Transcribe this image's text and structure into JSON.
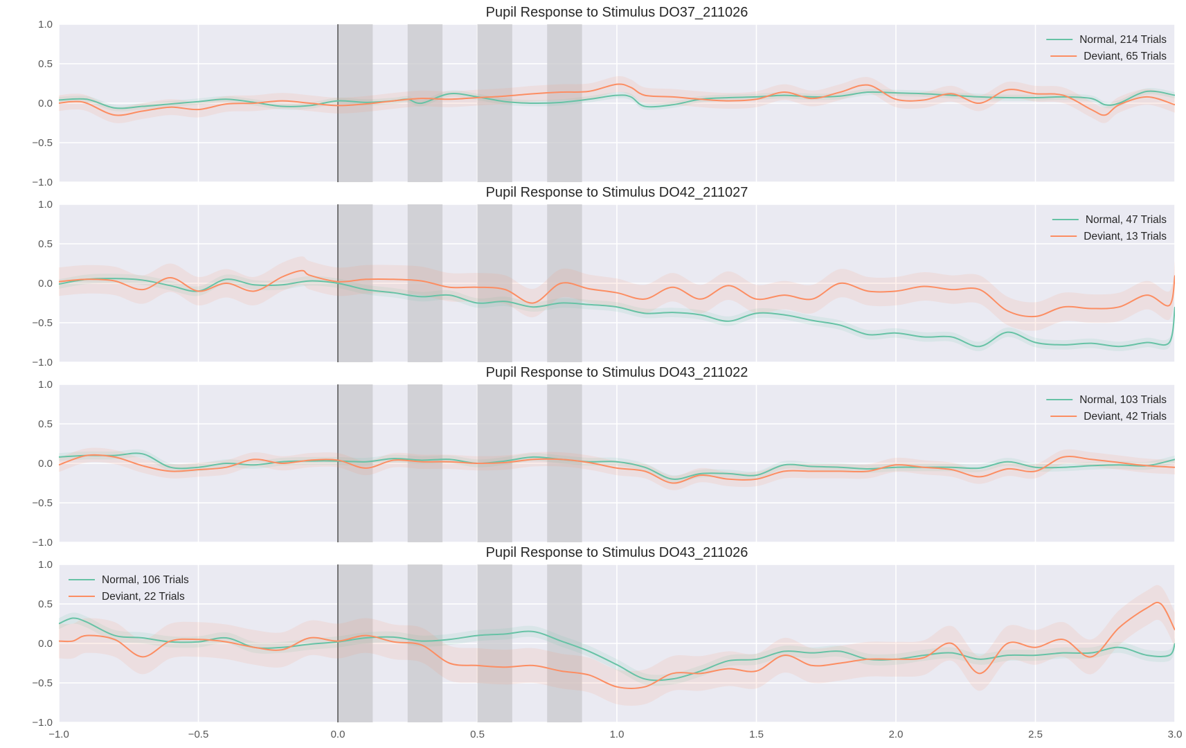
{
  "chart_data": {
    "type": "line",
    "xlim": [
      -1.0,
      3.0
    ],
    "ylim": [
      -1.0,
      1.0
    ],
    "xticks": [
      "−1.0",
      "−0.5",
      "0.0",
      "0.5",
      "1.0",
      "1.5",
      "2.0",
      "2.5",
      "3.0"
    ],
    "xtick_values": [
      -1.0,
      -0.5,
      0.0,
      0.5,
      1.0,
      1.5,
      2.0,
      2.5,
      3.0
    ],
    "yticks": [
      "1.0",
      "0.5",
      "0.0",
      "−0.5",
      "−1.0"
    ],
    "ytick_values": [
      1.0,
      0.5,
      0.0,
      -0.5,
      -1.0
    ],
    "stimulus_line_x": 0.0,
    "stimulus_bands": [
      [
        0.0,
        0.125
      ],
      [
        0.25,
        0.375
      ],
      [
        0.5,
        0.625
      ],
      [
        0.75,
        0.875
      ]
    ],
    "colors": {
      "normal": "#66c2a5",
      "deviant": "#fc8d62",
      "band": "#c8c8cc",
      "axes_bg": "#eaeaf2",
      "grid": "#ffffff"
    },
    "grid": true,
    "panels": [
      {
        "title": "Pupil Response to Stimulus DO37_211026",
        "legend_position": "top-right",
        "series": [
          {
            "name": "Normal, 214 Trials",
            "key": "normal",
            "band": 0.04,
            "x": [
              -1.0,
              -0.9,
              -0.8,
              -0.7,
              -0.6,
              -0.5,
              -0.4,
              -0.3,
              -0.2,
              -0.1,
              0.0,
              0.1,
              0.2,
              0.25,
              0.3,
              0.4,
              0.5,
              0.6,
              0.7,
              0.8,
              0.9,
              1.0,
              1.05,
              1.1,
              1.2,
              1.3,
              1.4,
              1.5,
              1.6,
              1.7,
              1.8,
              1.9,
              2.0,
              2.1,
              2.2,
              2.3,
              2.4,
              2.5,
              2.6,
              2.7,
              2.75,
              2.8,
              2.9,
              3.0
            ],
            "y": [
              0.04,
              0.05,
              -0.06,
              -0.04,
              -0.01,
              0.02,
              0.05,
              0.01,
              -0.04,
              -0.03,
              0.03,
              0.01,
              0.03,
              0.05,
              0.0,
              0.12,
              0.08,
              0.02,
              0.0,
              0.01,
              0.05,
              0.1,
              0.08,
              -0.04,
              -0.02,
              0.05,
              0.07,
              0.08,
              0.1,
              0.08,
              0.09,
              0.14,
              0.13,
              0.12,
              0.1,
              0.08,
              0.07,
              0.07,
              0.08,
              0.06,
              -0.02,
              0.0,
              0.15,
              0.1
            ]
          },
          {
            "name": "Deviant, 65 Trials",
            "key": "deviant",
            "band": 0.1,
            "x": [
              -1.0,
              -0.95,
              -0.9,
              -0.8,
              -0.7,
              -0.6,
              -0.5,
              -0.4,
              -0.3,
              -0.2,
              -0.1,
              0.0,
              0.1,
              0.2,
              0.3,
              0.4,
              0.5,
              0.6,
              0.7,
              0.8,
              0.9,
              1.0,
              1.05,
              1.1,
              1.2,
              1.3,
              1.4,
              1.5,
              1.6,
              1.7,
              1.8,
              1.9,
              2.0,
              2.1,
              2.2,
              2.3,
              2.4,
              2.5,
              2.6,
              2.7,
              2.75,
              2.8,
              2.9,
              3.0
            ],
            "y": [
              0.0,
              0.02,
              0.0,
              -0.15,
              -0.1,
              -0.05,
              -0.08,
              -0.01,
              0.0,
              0.03,
              0.0,
              -0.03,
              -0.01,
              0.03,
              0.06,
              0.05,
              0.07,
              0.09,
              0.12,
              0.14,
              0.15,
              0.24,
              0.2,
              0.1,
              0.08,
              0.05,
              0.03,
              0.05,
              0.14,
              0.06,
              0.14,
              0.23,
              0.05,
              0.04,
              0.12,
              0.0,
              0.17,
              0.12,
              0.1,
              -0.08,
              -0.15,
              -0.02,
              0.08,
              -0.02
            ]
          }
        ]
      },
      {
        "title": "Pupil Response to Stimulus DO42_211027",
        "legend_position": "top-right",
        "series": [
          {
            "name": "Normal, 47 Trials",
            "key": "normal",
            "band": 0.06,
            "x": [
              -1.0,
              -0.9,
              -0.8,
              -0.7,
              -0.6,
              -0.5,
              -0.4,
              -0.3,
              -0.2,
              -0.1,
              0.0,
              0.1,
              0.2,
              0.3,
              0.4,
              0.5,
              0.6,
              0.7,
              0.8,
              0.9,
              1.0,
              1.1,
              1.2,
              1.3,
              1.4,
              1.5,
              1.6,
              1.7,
              1.8,
              1.9,
              2.0,
              2.1,
              2.2,
              2.3,
              2.4,
              2.5,
              2.6,
              2.7,
              2.8,
              2.9,
              2.98,
              3.0
            ],
            "y": [
              -0.01,
              0.05,
              0.06,
              0.04,
              -0.03,
              -0.1,
              0.05,
              -0.02,
              -0.02,
              0.03,
              0.0,
              -0.08,
              -0.12,
              -0.17,
              -0.15,
              -0.25,
              -0.23,
              -0.3,
              -0.25,
              -0.27,
              -0.3,
              -0.38,
              -0.37,
              -0.4,
              -0.48,
              -0.38,
              -0.4,
              -0.47,
              -0.53,
              -0.65,
              -0.63,
              -0.68,
              -0.68,
              -0.8,
              -0.62,
              -0.75,
              -0.78,
              -0.76,
              -0.8,
              -0.75,
              -0.75,
              -0.3
            ]
          },
          {
            "name": "Deviant, 13 Trials",
            "key": "deviant",
            "band": 0.18,
            "x": [
              -1.0,
              -0.9,
              -0.8,
              -0.7,
              -0.6,
              -0.5,
              -0.4,
              -0.3,
              -0.2,
              -0.13,
              -0.1,
              0.0,
              0.1,
              0.2,
              0.3,
              0.4,
              0.5,
              0.6,
              0.7,
              0.8,
              0.9,
              1.0,
              1.1,
              1.2,
              1.3,
              1.4,
              1.5,
              1.6,
              1.7,
              1.8,
              1.9,
              2.0,
              2.1,
              2.2,
              2.3,
              2.4,
              2.5,
              2.6,
              2.7,
              2.8,
              2.9,
              2.98,
              3.0
            ],
            "y": [
              0.02,
              0.05,
              0.03,
              -0.08,
              0.07,
              -0.1,
              0.0,
              -0.1,
              0.08,
              0.16,
              0.1,
              0.02,
              0.05,
              0.05,
              0.03,
              -0.05,
              -0.05,
              -0.08,
              -0.25,
              0.0,
              -0.07,
              -0.12,
              -0.2,
              -0.05,
              -0.2,
              -0.03,
              -0.2,
              -0.15,
              -0.2,
              0.0,
              -0.1,
              -0.1,
              -0.04,
              -0.08,
              -0.08,
              -0.35,
              -0.42,
              -0.3,
              -0.32,
              -0.3,
              -0.15,
              -0.28,
              0.1
            ]
          }
        ]
      },
      {
        "title": "Pupil Response to Stimulus DO43_211022",
        "legend_position": "top-right",
        "series": [
          {
            "name": "Normal, 103 Trials",
            "key": "normal",
            "band": 0.05,
            "x": [
              -1.0,
              -0.9,
              -0.8,
              -0.7,
              -0.6,
              -0.5,
              -0.4,
              -0.3,
              -0.2,
              -0.1,
              0.0,
              0.1,
              0.2,
              0.3,
              0.4,
              0.5,
              0.6,
              0.7,
              0.8,
              0.9,
              1.0,
              1.1,
              1.2,
              1.3,
              1.4,
              1.5,
              1.6,
              1.7,
              1.8,
              1.9,
              2.0,
              2.1,
              2.2,
              2.3,
              2.4,
              2.5,
              2.6,
              2.7,
              2.8,
              2.9,
              3.0
            ],
            "y": [
              0.08,
              0.1,
              0.1,
              0.12,
              -0.05,
              -0.05,
              0.0,
              -0.02,
              0.02,
              0.03,
              0.03,
              0.02,
              0.06,
              0.04,
              0.05,
              0.0,
              0.03,
              0.08,
              0.05,
              0.02,
              0.02,
              -0.05,
              -0.2,
              -0.13,
              -0.13,
              -0.15,
              -0.02,
              -0.04,
              -0.05,
              -0.07,
              -0.05,
              -0.05,
              -0.05,
              -0.06,
              0.02,
              -0.05,
              -0.05,
              -0.03,
              -0.02,
              -0.03,
              0.05
            ]
          },
          {
            "name": "Deviant, 42 Trials",
            "key": "deviant",
            "band": 0.09,
            "x": [
              -1.0,
              -0.9,
              -0.8,
              -0.7,
              -0.6,
              -0.5,
              -0.4,
              -0.3,
              -0.2,
              -0.1,
              0.0,
              0.1,
              0.2,
              0.3,
              0.4,
              0.5,
              0.6,
              0.7,
              0.8,
              0.9,
              1.0,
              1.1,
              1.2,
              1.3,
              1.4,
              1.5,
              1.6,
              1.7,
              1.8,
              1.9,
              2.0,
              2.1,
              2.2,
              2.3,
              2.4,
              2.5,
              2.6,
              2.7,
              2.8,
              2.9,
              3.0
            ],
            "y": [
              -0.02,
              0.1,
              0.08,
              -0.03,
              -0.1,
              -0.08,
              -0.05,
              0.05,
              0.0,
              0.04,
              0.04,
              -0.06,
              0.04,
              0.02,
              0.02,
              0.0,
              0.01,
              0.05,
              0.05,
              0.01,
              -0.06,
              -0.1,
              -0.25,
              -0.15,
              -0.2,
              -0.2,
              -0.1,
              -0.1,
              -0.1,
              -0.1,
              -0.02,
              -0.05,
              -0.08,
              -0.17,
              -0.07,
              -0.1,
              0.08,
              0.05,
              0.01,
              -0.03,
              -0.05
            ]
          }
        ]
      },
      {
        "title": "Pupil Response to Stimulus DO43_211026",
        "legend_position": "top-left",
        "series": [
          {
            "name": "Normal, 106 Trials",
            "key": "normal",
            "band": 0.07,
            "x": [
              -1.0,
              -0.95,
              -0.9,
              -0.8,
              -0.7,
              -0.6,
              -0.5,
              -0.4,
              -0.3,
              -0.2,
              -0.1,
              0.0,
              0.1,
              0.2,
              0.3,
              0.4,
              0.5,
              0.6,
              0.7,
              0.8,
              0.9,
              1.0,
              1.1,
              1.2,
              1.3,
              1.4,
              1.5,
              1.6,
              1.7,
              1.8,
              1.9,
              2.0,
              2.1,
              2.2,
              2.3,
              2.4,
              2.5,
              2.6,
              2.7,
              2.8,
              2.9,
              2.98,
              3.0
            ],
            "y": [
              0.25,
              0.32,
              0.27,
              0.1,
              0.07,
              0.02,
              0.02,
              0.07,
              -0.05,
              -0.05,
              -0.01,
              0.02,
              0.07,
              0.08,
              0.03,
              0.05,
              0.1,
              0.12,
              0.15,
              0.03,
              -0.1,
              -0.27,
              -0.45,
              -0.45,
              -0.35,
              -0.22,
              -0.2,
              -0.1,
              -0.12,
              -0.1,
              -0.2,
              -0.2,
              -0.15,
              -0.12,
              -0.2,
              -0.15,
              -0.15,
              -0.12,
              -0.12,
              -0.05,
              -0.15,
              -0.15,
              0.0
            ]
          },
          {
            "name": "Deviant, 22 Trials",
            "key": "deviant",
            "band": 0.22,
            "x": [
              -1.0,
              -0.95,
              -0.9,
              -0.8,
              -0.7,
              -0.6,
              -0.5,
              -0.4,
              -0.3,
              -0.2,
              -0.1,
              0.0,
              0.1,
              0.2,
              0.3,
              0.4,
              0.5,
              0.6,
              0.7,
              0.8,
              0.9,
              1.0,
              1.1,
              1.2,
              1.3,
              1.4,
              1.5,
              1.6,
              1.7,
              1.8,
              1.9,
              2.0,
              2.1,
              2.2,
              2.3,
              2.4,
              2.5,
              2.6,
              2.7,
              2.8,
              2.9,
              2.95,
              3.0
            ],
            "y": [
              0.03,
              0.03,
              0.1,
              0.05,
              -0.17,
              0.03,
              0.05,
              0.02,
              -0.05,
              -0.08,
              0.07,
              0.03,
              0.1,
              0.02,
              -0.02,
              -0.25,
              -0.28,
              -0.3,
              -0.28,
              -0.35,
              -0.4,
              -0.55,
              -0.55,
              -0.38,
              -0.38,
              -0.32,
              -0.35,
              -0.15,
              -0.28,
              -0.25,
              -0.2,
              -0.2,
              -0.18,
              0.0,
              -0.38,
              0.0,
              -0.05,
              0.05,
              -0.17,
              0.2,
              0.45,
              0.5,
              0.17
            ]
          }
        ]
      }
    ]
  }
}
